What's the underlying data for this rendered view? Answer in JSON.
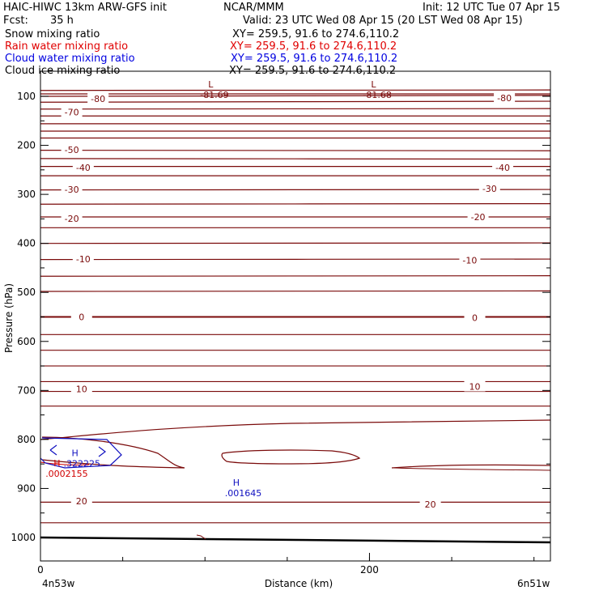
{
  "header": {
    "title": "HAIC-HIWC 13km ARW-GFS init",
    "org": "NCAR/MMM",
    "init": "Init: 12 UTC Tue 07 Apr 15",
    "fcst_label": "Fcst:",
    "fcst_value": "35 h",
    "valid": "Valid: 23 UTC Wed 08 Apr 15 (20 LST Wed 08 Apr 15)"
  },
  "fields": [
    {
      "name": "Snow mixing ratio",
      "xy": "XY= 259.5, 91.6 to 274.6,110.2",
      "color": "#000000"
    },
    {
      "name": "Rain water mixing ratio",
      "xy": "XY= 259.5, 91.6 to 274.6,110.2",
      "color": "#e00000"
    },
    {
      "name": "Cloud water mixing ratio",
      "xy": "XY= 259.5, 91.6 to 274.6,110.2",
      "color": "#0000e0"
    },
    {
      "name": "Cloud ice mixing ratio",
      "xy": "XY= 259.5, 91.6 to 274.6,110.2",
      "color": "#000000"
    }
  ],
  "colors": {
    "temperature_contour": "#7a0a0a",
    "cloud_water": "#1010c0",
    "rain_water": "#d00000",
    "terrain": "#000000"
  },
  "chart_data": {
    "type": "contour",
    "xlabel": "Distance (km)",
    "ylabel": "Pressure (hPa)",
    "xlim": [
      0,
      310
    ],
    "ylim": [
      1035,
      65
    ],
    "xticks": [
      0,
      200
    ],
    "yticks": [
      100,
      200,
      300,
      400,
      500,
      600,
      700,
      800,
      900,
      1000
    ],
    "endpoint_left": "4n53w",
    "endpoint_right": "6n51w",
    "grid": false,
    "temperature_contours": [
      {
        "value": -80,
        "p_left": 100,
        "p_right": 98
      },
      {
        "p_left": 95,
        "p_right": 95
      },
      {
        "p_left": 88,
        "p_right": 87
      },
      {
        "p_left": 112,
        "p_right": 110
      },
      {
        "value": -70,
        "p_left": 126,
        "p_right": 125
      },
      {
        "p_left": 140,
        "p_right": 140
      },
      {
        "p_left": 156,
        "p_right": 156
      },
      {
        "p_left": 171,
        "p_right": 171
      },
      {
        "p_left": 185,
        "p_right": 185
      },
      {
        "value": -50,
        "p_left": 210,
        "p_right": 211
      },
      {
        "p_left": 227,
        "p_right": 228
      },
      {
        "value": -40,
        "p_left": 243,
        "p_right": 243
      },
      {
        "p_left": 262,
        "p_right": 262
      },
      {
        "value": -30,
        "p_left": 291,
        "p_right": 290
      },
      {
        "p_left": 320,
        "p_right": 319
      },
      {
        "value": -20,
        "p_left": 346,
        "p_right": 346
      },
      {
        "p_left": 368,
        "p_right": 368
      },
      {
        "p_left": 400,
        "p_right": 399
      },
      {
        "value": -10,
        "p_left": 433,
        "p_right": 432
      },
      {
        "p_left": 467,
        "p_right": 466
      },
      {
        "p_left": 498,
        "p_right": 497
      },
      {
        "value": 0,
        "p_left": 550,
        "p_right": 550
      },
      {
        "p_left": 586,
        "p_right": 586
      },
      {
        "p_left": 618,
        "p_right": 618
      },
      {
        "p_left": 650,
        "p_right": 650
      },
      {
        "value": 10,
        "p_left": 682,
        "p_right": 682
      },
      {
        "p_left": 702,
        "p_right": 702
      },
      {
        "p_left": 732,
        "p_right": 732
      },
      {
        "value": 20,
        "p_left": 928,
        "p_right": 928
      },
      {
        "p_left": 970,
        "p_right": 970
      }
    ],
    "contour_labels": [
      {
        "text": "-80",
        "x": 35,
        "p": 105
      },
      {
        "text": "-80",
        "x": 282,
        "p": 103
      },
      {
        "text": "-70",
        "x": 19,
        "p": 132
      },
      {
        "text": "-50",
        "x": 19,
        "p": 209
      },
      {
        "text": "-40",
        "x": 26,
        "p": 245
      },
      {
        "text": "-40",
        "x": 281,
        "p": 245
      },
      {
        "text": "-30",
        "x": 19,
        "p": 290
      },
      {
        "text": "-30",
        "x": 273,
        "p": 288
      },
      {
        "text": "-20",
        "x": 19,
        "p": 349
      },
      {
        "text": "-20",
        "x": 266,
        "p": 346
      },
      {
        "text": "-10",
        "x": 26,
        "p": 432
      },
      {
        "text": "-10",
        "x": 261,
        "p": 434
      },
      {
        "text": "0",
        "x": 25,
        "p": 550
      },
      {
        "text": "0",
        "x": 264,
        "p": 552
      },
      {
        "text": "10",
        "x": 25,
        "p": 697
      },
      {
        "text": "10",
        "x": 264,
        "p": 692
      },
      {
        "text": "20",
        "x": 25,
        "p": 926
      },
      {
        "text": "20",
        "x": 237,
        "p": 932
      }
    ],
    "extrema": [
      {
        "marker": "L",
        "value": "-81.69",
        "x": 100,
        "p": 85,
        "color": "#7a0a0a"
      },
      {
        "marker": "L",
        "value": "-81.68",
        "x": 199,
        "p": 85,
        "color": "#7a0a0a"
      },
      {
        "marker": "H",
        "value": ".322225",
        "x": 17,
        "p": 837,
        "color": "#1010c0"
      },
      {
        "marker": "H",
        "value": ".0002155",
        "x": 6,
        "p": 858,
        "color": "#d00000"
      },
      {
        "marker": "H",
        "value": ".001645",
        "x": 115,
        "p": 898,
        "color": "#1010c0"
      }
    ]
  }
}
